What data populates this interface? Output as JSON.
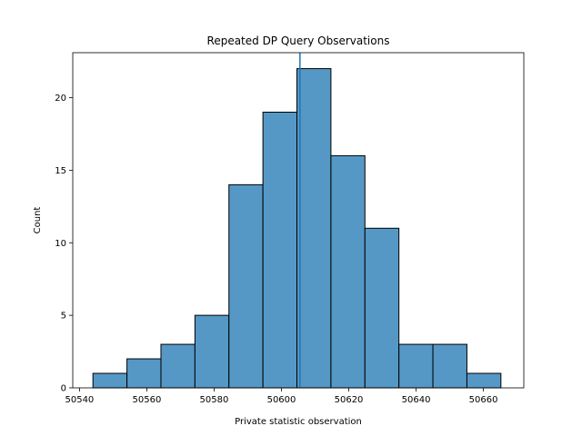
{
  "chart_data": {
    "type": "bar",
    "title": "Repeated DP Query Observations",
    "xlabel": "Private statistic observation",
    "ylabel": "Count",
    "xlim": [
      50538,
      50672
    ],
    "ylim": [
      0,
      23.1
    ],
    "x_ticks": [
      50540,
      50560,
      50580,
      50600,
      50620,
      50640,
      50660
    ],
    "y_ticks": [
      0,
      5,
      10,
      15,
      20
    ],
    "bins": [
      {
        "x0": 50544.0,
        "x1": 50554.1,
        "count": 1
      },
      {
        "x0": 50554.1,
        "x1": 50564.2,
        "count": 2
      },
      {
        "x0": 50564.2,
        "x1": 50574.3,
        "count": 3
      },
      {
        "x0": 50574.3,
        "x1": 50584.4,
        "count": 5
      },
      {
        "x0": 50584.4,
        "x1": 50594.5,
        "count": 14
      },
      {
        "x0": 50594.5,
        "x1": 50604.6,
        "count": 19
      },
      {
        "x0": 50604.6,
        "x1": 50614.7,
        "count": 22
      },
      {
        "x0": 50614.7,
        "x1": 50624.8,
        "count": 16
      },
      {
        "x0": 50624.8,
        "x1": 50634.9,
        "count": 11
      },
      {
        "x0": 50634.9,
        "x1": 50645.0,
        "count": 3
      },
      {
        "x0": 50645.0,
        "x1": 50655.1,
        "count": 3
      },
      {
        "x0": 50655.1,
        "x1": 50665.2,
        "count": 1
      }
    ],
    "reference_line_x": 50605.5,
    "grid": false,
    "colors": {
      "bar_fill": "#5598c6",
      "bar_edge": "#000000",
      "reference_line": "#1f77b4"
    }
  }
}
